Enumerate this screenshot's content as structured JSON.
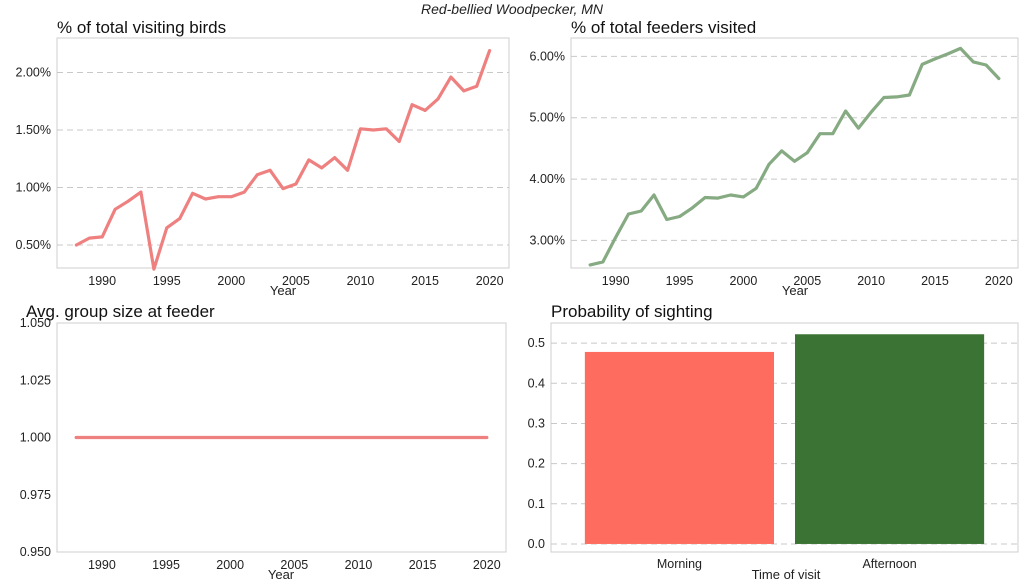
{
  "figure": {
    "suptitle": "Red-bellied Woodpecker, MN"
  },
  "chart_data": [
    {
      "type": "line",
      "title": "% of total visiting birds",
      "xlabel": "Year",
      "ylabel": "",
      "color": "#ef8080",
      "x": [
        1988,
        1989,
        1990,
        1991,
        1992,
        1993,
        1994,
        1995,
        1996,
        1997,
        1998,
        1999,
        2000,
        2001,
        2002,
        2003,
        2004,
        2005,
        2006,
        2007,
        2008,
        2009,
        2010,
        2011,
        2012,
        2013,
        2014,
        2015,
        2016,
        2017,
        2018,
        2019,
        2020
      ],
      "values": [
        0.5,
        0.56,
        0.57,
        0.81,
        0.88,
        0.96,
        0.29,
        0.65,
        0.73,
        0.95,
        0.9,
        0.92,
        0.92,
        0.96,
        1.11,
        1.15,
        0.99,
        1.03,
        1.24,
        1.17,
        1.26,
        1.15,
        1.51,
        1.5,
        1.51,
        1.4,
        1.72,
        1.67,
        1.77,
        1.96,
        1.84,
        1.88,
        2.19
      ],
      "xlim": [
        1986.5,
        2021.5
      ],
      "ylim": [
        0.3,
        2.3
      ],
      "xticks": [
        1990,
        1995,
        2000,
        2005,
        2010,
        2015,
        2020
      ],
      "xtick_labels": [
        "1990",
        "1995",
        "2000",
        "2005",
        "2010",
        "2015",
        "2020"
      ],
      "yticks": [
        0.5,
        1.0,
        1.5,
        2.0
      ],
      "ytick_labels": [
        "0.50%",
        "1.00%",
        "1.50%",
        "2.00%"
      ],
      "grid": "y-dashed"
    },
    {
      "type": "line",
      "title": "% of total feeders visited",
      "xlabel": "Year",
      "ylabel": "",
      "color": "#86aa82",
      "x": [
        1988,
        1989,
        1990,
        1991,
        1992,
        1993,
        1994,
        1995,
        1996,
        1997,
        1998,
        1999,
        2000,
        2001,
        2002,
        2003,
        2004,
        2005,
        2006,
        2007,
        2008,
        2009,
        2010,
        2011,
        2012,
        2013,
        2014,
        2015,
        2016,
        2017,
        2018,
        2019,
        2020
      ],
      "values": [
        2.6,
        2.65,
        3.05,
        3.43,
        3.48,
        3.74,
        3.34,
        3.39,
        3.53,
        3.7,
        3.69,
        3.74,
        3.71,
        3.85,
        4.24,
        4.46,
        4.29,
        4.43,
        4.74,
        4.74,
        5.11,
        4.83,
        5.09,
        5.33,
        5.34,
        5.37,
        5.87,
        5.96,
        6.04,
        6.13,
        5.91,
        5.86,
        5.64
      ],
      "xlim": [
        1986.5,
        2021.5
      ],
      "ylim": [
        2.55,
        6.3
      ],
      "xticks": [
        1990,
        1995,
        2000,
        2005,
        2010,
        2015,
        2020
      ],
      "xtick_labels": [
        "1990",
        "1995",
        "2000",
        "2005",
        "2010",
        "2015",
        "2020"
      ],
      "yticks": [
        3,
        4,
        5,
        6
      ],
      "ytick_labels": [
        "3.00%",
        "4.00%",
        "5.00%",
        "6.00%"
      ],
      "grid": "y-dashed"
    },
    {
      "type": "line",
      "title": "Avg. group size at feeder",
      "xlabel": "Year",
      "ylabel": "",
      "color": "#ef8080",
      "x": [
        1988,
        1989,
        1990,
        1991,
        1992,
        1993,
        1994,
        1995,
        1996,
        1997,
        1998,
        1999,
        2000,
        2001,
        2002,
        2003,
        2004,
        2005,
        2006,
        2007,
        2008,
        2009,
        2010,
        2011,
        2012,
        2013,
        2014,
        2015,
        2016,
        2017,
        2018,
        2019,
        2020
      ],
      "values": [
        1,
        1,
        1,
        1,
        1,
        1,
        1,
        1,
        1,
        1,
        1,
        1,
        1,
        1,
        1,
        1,
        1,
        1,
        1,
        1,
        1,
        1,
        1,
        1,
        1,
        1,
        1,
        1,
        1,
        1,
        1,
        1,
        1
      ],
      "xlim": [
        1986.5,
        2021.5
      ],
      "ylim": [
        0.95,
        1.05
      ],
      "xticks": [
        1990,
        1995,
        2000,
        2005,
        2010,
        2015,
        2020
      ],
      "xtick_labels": [
        "1990",
        "1995",
        "2000",
        "2005",
        "2010",
        "2015",
        "2020"
      ],
      "yticks": [
        0.95,
        0.975,
        1.0,
        1.025,
        1.05
      ],
      "ytick_labels": [
        "0.950",
        "0.975",
        "1.000",
        "1.025",
        "1.050"
      ],
      "grid": "none"
    },
    {
      "type": "bar",
      "title": "Probability of sighting",
      "xlabel": "Time of visit",
      "ylabel": "",
      "categories": [
        "Morning",
        "Afternoon"
      ],
      "values": [
        0.478,
        0.522
      ],
      "colors": [
        "#fe6c5f",
        "#3b7334"
      ],
      "ylim": [
        -0.02,
        0.55
      ],
      "yticks": [
        0.0,
        0.1,
        0.2,
        0.3,
        0.4,
        0.5
      ],
      "ytick_labels": [
        "0.0",
        "0.1",
        "0.2",
        "0.3",
        "0.4",
        "0.5"
      ],
      "grid": "y-dashed"
    }
  ]
}
